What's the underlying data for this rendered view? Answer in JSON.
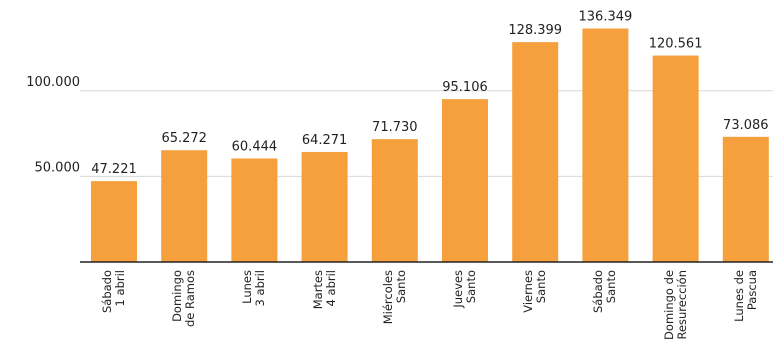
{
  "chart_data": {
    "type": "bar",
    "categories": [
      "Sábado\n1 abril",
      "Domingo\nde Ramos",
      "Lunes\n3 abril",
      "Martes\n4 abril",
      "Miércoles\nSanto",
      "Jueves\nSanto",
      "Viernes\nSanto",
      "Sábado\nSanto",
      "Domingo de\nResurección",
      "Lunes de\nPascua"
    ],
    "values": [
      47221,
      65272,
      60444,
      64271,
      71730,
      95106,
      128399,
      136349,
      120561,
      73086
    ],
    "value_labels": [
      "47.221",
      "65.272",
      "60.444",
      "64.271",
      "71.730",
      "95.106",
      "128.399",
      "136.349",
      "120.561",
      "73.086"
    ],
    "color": "#f5a03c",
    "ylim": [
      0,
      153000
    ],
    "yticks": [
      {
        "value": 50000,
        "label": "50.000"
      },
      {
        "value": 100000,
        "label": "100.000"
      }
    ],
    "grid": true
  }
}
